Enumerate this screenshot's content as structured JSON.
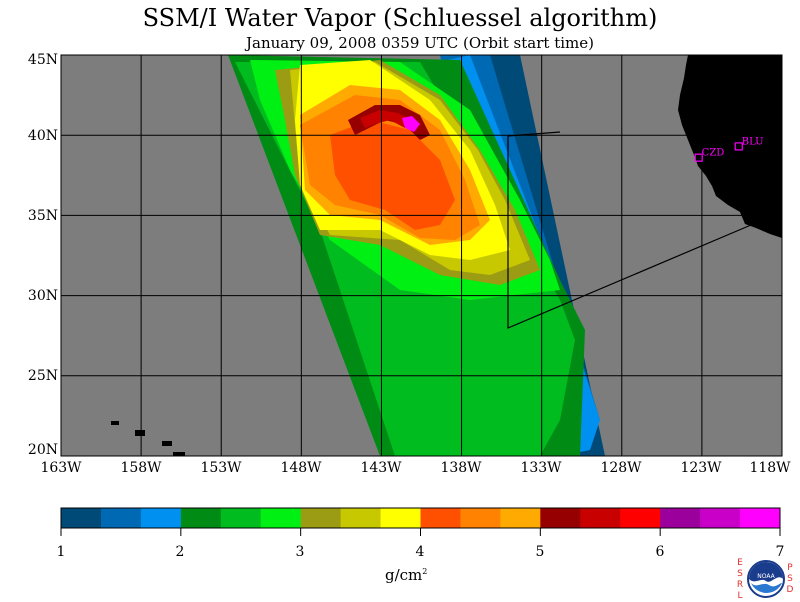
{
  "title": "SSM/I Water Vapor (Schluessel algorithm)",
  "subtitle": "January 09, 2008  0359 UTC  (Orbit start time)",
  "axes": {
    "y_labels": [
      "45N",
      "40N",
      "35N",
      "30N",
      "25N",
      "20N"
    ],
    "x_labels": [
      "163W",
      "158W",
      "153W",
      "148W",
      "143W",
      "138W",
      "133W",
      "128W",
      "123W",
      "118W"
    ]
  },
  "stations": [
    {
      "name": "CZD",
      "lat": 38.6,
      "lon": -123.2
    },
    {
      "name": "BLU",
      "lat": 39.3,
      "lon": -120.7
    }
  ],
  "colorbar": {
    "colors": [
      "#004a78",
      "#0069b4",
      "#0090f0",
      "#008c14",
      "#00bc1e",
      "#00f014",
      "#9c9c14",
      "#c8c800",
      "#ffff00",
      "#ff5000",
      "#ff8200",
      "#ffaa00",
      "#960000",
      "#c80000",
      "#ff0000",
      "#9c009c",
      "#c800c8",
      "#ff00ff"
    ],
    "tick_labels": [
      "1",
      "2",
      "3",
      "4",
      "5",
      "6",
      "7"
    ],
    "units_main": "g/cm",
    "units_sup": "2"
  },
  "logo": {
    "left_letters": [
      "E",
      "S",
      "R",
      "L"
    ],
    "right_letters": [
      "P",
      "S",
      "D"
    ],
    "center_text": "NOAA"
  },
  "colors": {
    "background_gray": "#7d7d7d",
    "land": "#000000",
    "station_marker": "#ff00ff"
  }
}
